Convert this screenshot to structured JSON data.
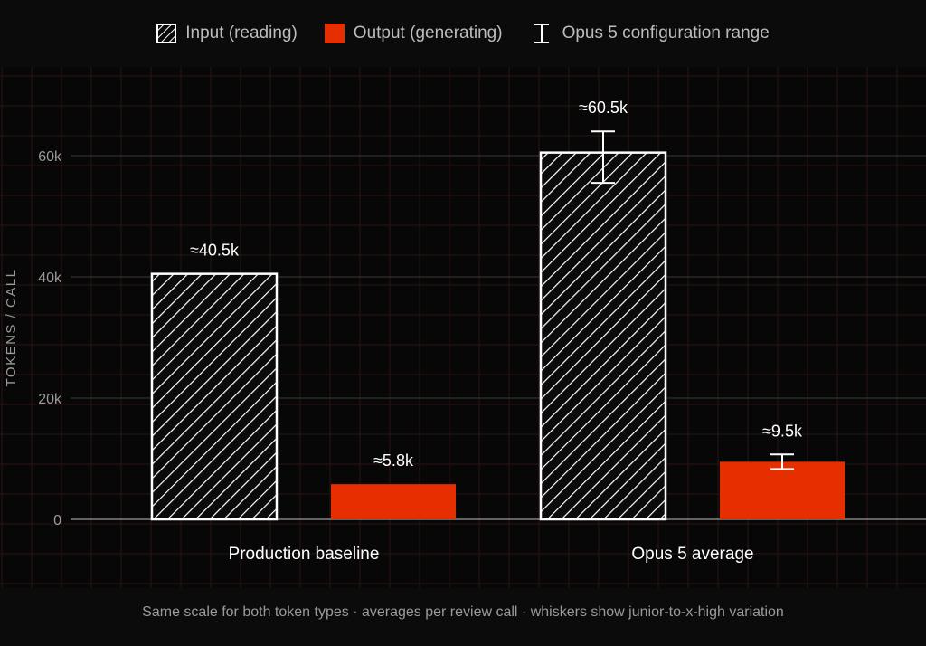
{
  "legend": {
    "input_label": "Input (reading)",
    "output_label": "Output (generating)",
    "range_label": "Opus 5 configuration range"
  },
  "caption": "Same scale for both token types · averages per review call · whiskers show junior-to-x-high variation",
  "colors": {
    "background": "#0b0b0b",
    "grid": "#2a1410",
    "input_stroke": "#ffffff",
    "output_fill": "#e62e00",
    "axis_text": "#9a9a9a"
  },
  "chart_data": {
    "type": "bar",
    "categories": [
      "Production baseline",
      "Opus 5 average"
    ],
    "series": [
      {
        "name": "Input (reading)",
        "values": [
          40500,
          60500
        ],
        "labels": [
          "≈40.5k",
          "≈60.5k"
        ],
        "pattern": "hatched",
        "range": [
          null,
          [
            55500,
            64000
          ]
        ]
      },
      {
        "name": "Output (generating)",
        "values": [
          5800,
          9500
        ],
        "labels": [
          "≈5.8k",
          "≈9.5k"
        ],
        "pattern": "solid",
        "range": [
          null,
          [
            8300,
            10700
          ]
        ]
      }
    ],
    "ylabel": "TOKENS / CALL",
    "yticks": [
      0,
      20000,
      40000,
      60000
    ],
    "ytick_labels": [
      "0",
      "20k",
      "40k",
      "60k"
    ],
    "ylim": [
      0,
      75000
    ],
    "grid": true,
    "legend_position": "top-center"
  }
}
